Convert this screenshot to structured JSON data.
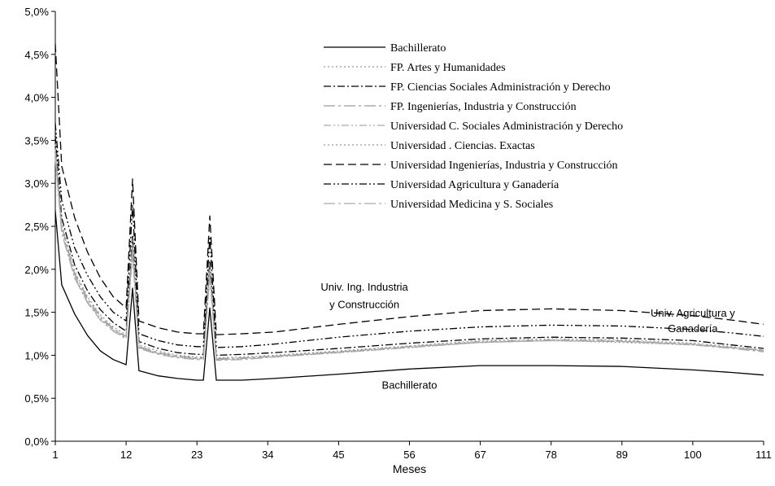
{
  "chart_data": {
    "type": "line",
    "xlabel": "Meses",
    "ylabel": "",
    "xlim": [
      1,
      111
    ],
    "ylim": [
      0,
      5
    ],
    "x_ticks": [
      1,
      12,
      23,
      34,
      45,
      56,
      67,
      78,
      89,
      100,
      111
    ],
    "x_tick_labels": [
      "1",
      "12",
      "23",
      "34",
      "45",
      "56",
      "67",
      "78",
      "89",
      "100",
      "111"
    ],
    "y_ticks": [
      0,
      0.5,
      1.0,
      1.5,
      2.0,
      2.5,
      3.0,
      3.5,
      4.0,
      4.5,
      5.0
    ],
    "y_tick_labels": [
      "0,0%",
      "0,5%",
      "1,0%",
      "1,5%",
      "2,0%",
      "2,5%",
      "3,0%",
      "3,5%",
      "4,0%",
      "4,5%",
      "5,0%"
    ],
    "grid": false,
    "legend_position": "top-right",
    "spike_months": [
      13,
      25
    ],
    "annotations": [
      {
        "text": "Univ. Ing. Industria",
        "x": 49,
        "y": 1.75
      },
      {
        "text": "y Construcción",
        "x": 49,
        "y": 1.55
      },
      {
        "text": "Univ. Agricultura y",
        "x": 100,
        "y": 1.45
      },
      {
        "text": "Ganadería",
        "x": 100,
        "y": 1.27
      },
      {
        "text": "Bachillerato",
        "x": 56,
        "y": 0.61
      }
    ],
    "series": [
      {
        "name": "Bachillerato",
        "color": "#000000",
        "dash": "solid",
        "baseline": [
          [
            1,
            2.68
          ],
          [
            2,
            1.82
          ],
          [
            4,
            1.48
          ],
          [
            6,
            1.23
          ],
          [
            8,
            1.05
          ],
          [
            10,
            0.95
          ],
          [
            12,
            0.89
          ],
          [
            14,
            0.82
          ],
          [
            17,
            0.76
          ],
          [
            20,
            0.73
          ],
          [
            23,
            0.71
          ],
          [
            24,
            0.71
          ],
          [
            26,
            0.71
          ],
          [
            30,
            0.71
          ],
          [
            35,
            0.73
          ],
          [
            45,
            0.78
          ],
          [
            56,
            0.84
          ],
          [
            67,
            0.88
          ],
          [
            78,
            0.88
          ],
          [
            89,
            0.87
          ],
          [
            100,
            0.83
          ],
          [
            106,
            0.8
          ],
          [
            111,
            0.77
          ]
        ],
        "spikes": [
          1.78,
          1.55
        ]
      },
      {
        "name": "FP. Artes y Humanidades",
        "color": "#999999",
        "dash": "dot",
        "baseline": [
          [
            1,
            3.3
          ],
          [
            2,
            2.45
          ],
          [
            4,
            1.9
          ],
          [
            6,
            1.62
          ],
          [
            8,
            1.42
          ],
          [
            10,
            1.29
          ],
          [
            12,
            1.2
          ],
          [
            14,
            1.09
          ],
          [
            17,
            1.02
          ],
          [
            20,
            0.98
          ],
          [
            23,
            0.96
          ],
          [
            24,
            0.96
          ],
          [
            26,
            0.95
          ],
          [
            30,
            0.96
          ],
          [
            35,
            0.98
          ],
          [
            45,
            1.03
          ],
          [
            56,
            1.09
          ],
          [
            67,
            1.15
          ],
          [
            78,
            1.17
          ],
          [
            89,
            1.15
          ],
          [
            100,
            1.12
          ],
          [
            106,
            1.09
          ],
          [
            111,
            1.05
          ]
        ],
        "spikes": [
          2.2,
          1.95
        ]
      },
      {
        "name": "FP. Ciencias Sociales Administración  y Derecho",
        "color": "#000000",
        "dash": "dashdot",
        "baseline": [
          [
            1,
            3.55
          ],
          [
            2,
            2.6
          ],
          [
            4,
            2.05
          ],
          [
            6,
            1.75
          ],
          [
            8,
            1.53
          ],
          [
            10,
            1.38
          ],
          [
            12,
            1.28
          ],
          [
            14,
            1.16
          ],
          [
            17,
            1.08
          ],
          [
            20,
            1.03
          ],
          [
            23,
            1.01
          ],
          [
            24,
            1.01
          ],
          [
            26,
            1.0
          ],
          [
            30,
            1.01
          ],
          [
            35,
            1.03
          ],
          [
            45,
            1.08
          ],
          [
            56,
            1.14
          ],
          [
            67,
            1.19
          ],
          [
            78,
            1.21
          ],
          [
            89,
            1.2
          ],
          [
            100,
            1.17
          ],
          [
            106,
            1.12
          ],
          [
            111,
            1.08
          ]
        ],
        "spikes": [
          2.4,
          2.1
        ]
      },
      {
        "name": "FP. Ingenierías, Industria y Construcción",
        "color": "#999999",
        "dash": "longdash-dot",
        "baseline": [
          [
            1,
            3.4
          ],
          [
            2,
            2.5
          ],
          [
            4,
            1.95
          ],
          [
            6,
            1.66
          ],
          [
            8,
            1.45
          ],
          [
            10,
            1.31
          ],
          [
            12,
            1.22
          ],
          [
            14,
            1.1
          ],
          [
            17,
            1.03
          ],
          [
            20,
            0.99
          ],
          [
            23,
            0.97
          ],
          [
            24,
            0.97
          ],
          [
            26,
            0.96
          ],
          [
            30,
            0.97
          ],
          [
            35,
            0.99
          ],
          [
            45,
            1.04
          ],
          [
            56,
            1.1
          ],
          [
            67,
            1.15
          ],
          [
            78,
            1.17
          ],
          [
            89,
            1.16
          ],
          [
            100,
            1.13
          ],
          [
            106,
            1.09
          ],
          [
            111,
            1.06
          ]
        ],
        "spikes": [
          2.3,
          2.0
        ]
      },
      {
        "name": "Universidad C. Sociales Administración y Derecho",
        "color": "#aaaaaa",
        "dash": "dashdotdot",
        "baseline": [
          [
            1,
            3.35
          ],
          [
            2,
            2.45
          ],
          [
            4,
            1.92
          ],
          [
            6,
            1.63
          ],
          [
            8,
            1.43
          ],
          [
            10,
            1.3
          ],
          [
            12,
            1.21
          ],
          [
            14,
            1.09
          ],
          [
            17,
            1.02
          ],
          [
            20,
            0.98
          ],
          [
            23,
            0.96
          ],
          [
            24,
            0.96
          ],
          [
            26,
            0.95
          ],
          [
            30,
            0.96
          ],
          [
            35,
            0.99
          ],
          [
            45,
            1.04
          ],
          [
            56,
            1.1
          ],
          [
            67,
            1.16
          ],
          [
            78,
            1.18
          ],
          [
            89,
            1.17
          ],
          [
            100,
            1.13
          ],
          [
            106,
            1.09
          ],
          [
            111,
            1.05
          ]
        ],
        "spikes": [
          2.25,
          1.98
        ]
      },
      {
        "name": "Universidad . Ciencias. Exactas",
        "color": "#999999",
        "dash": "dot",
        "baseline": [
          [
            1,
            3.45
          ],
          [
            2,
            2.55
          ],
          [
            4,
            1.98
          ],
          [
            6,
            1.68
          ],
          [
            8,
            1.47
          ],
          [
            10,
            1.33
          ],
          [
            12,
            1.24
          ],
          [
            14,
            1.12
          ],
          [
            17,
            1.05
          ],
          [
            20,
            1.0
          ],
          [
            23,
            0.98
          ],
          [
            24,
            0.98
          ],
          [
            26,
            0.97
          ],
          [
            30,
            0.98
          ],
          [
            35,
            1.0
          ],
          [
            45,
            1.05
          ],
          [
            56,
            1.11
          ],
          [
            67,
            1.17
          ],
          [
            78,
            1.19
          ],
          [
            89,
            1.18
          ],
          [
            100,
            1.14
          ],
          [
            106,
            1.1
          ],
          [
            111,
            1.06
          ]
        ],
        "spikes": [
          2.35,
          2.05
        ]
      },
      {
        "name": "Universidad Ingenierías, Industria y Construcción",
        "color": "#000000",
        "dash": "dash",
        "baseline": [
          [
            1,
            4.62
          ],
          [
            2,
            3.2
          ],
          [
            4,
            2.6
          ],
          [
            6,
            2.2
          ],
          [
            8,
            1.9
          ],
          [
            10,
            1.68
          ],
          [
            12,
            1.55
          ],
          [
            14,
            1.4
          ],
          [
            17,
            1.32
          ],
          [
            20,
            1.27
          ],
          [
            23,
            1.25
          ],
          [
            24,
            1.25
          ],
          [
            26,
            1.24
          ],
          [
            30,
            1.25
          ],
          [
            35,
            1.27
          ],
          [
            45,
            1.36
          ],
          [
            56,
            1.45
          ],
          [
            67,
            1.52
          ],
          [
            78,
            1.54
          ],
          [
            89,
            1.52
          ],
          [
            100,
            1.46
          ],
          [
            106,
            1.41
          ],
          [
            111,
            1.36
          ]
        ],
        "spikes": [
          3.05,
          2.62
        ]
      },
      {
        "name": "Universidad Agricultura y Ganadería",
        "color": "#000000",
        "dash": "dashdotdot",
        "baseline": [
          [
            1,
            3.7
          ],
          [
            2,
            2.8
          ],
          [
            4,
            2.25
          ],
          [
            6,
            1.93
          ],
          [
            8,
            1.68
          ],
          [
            10,
            1.5
          ],
          [
            12,
            1.4
          ],
          [
            14,
            1.25
          ],
          [
            17,
            1.17
          ],
          [
            20,
            1.12
          ],
          [
            23,
            1.1
          ],
          [
            24,
            1.1
          ],
          [
            26,
            1.09
          ],
          [
            30,
            1.1
          ],
          [
            35,
            1.13
          ],
          [
            45,
            1.21
          ],
          [
            56,
            1.28
          ],
          [
            67,
            1.33
          ],
          [
            78,
            1.35
          ],
          [
            89,
            1.34
          ],
          [
            100,
            1.3
          ],
          [
            106,
            1.26
          ],
          [
            111,
            1.22
          ]
        ],
        "spikes": [
          2.75,
          2.38
        ]
      },
      {
        "name": "Universidad Medicina y  S. Sociales",
        "color": "#aaaaaa",
        "dash": "longdash-dot",
        "baseline": [
          [
            1,
            3.28
          ],
          [
            2,
            2.42
          ],
          [
            4,
            1.9
          ],
          [
            6,
            1.61
          ],
          [
            8,
            1.41
          ],
          [
            10,
            1.28
          ],
          [
            12,
            1.19
          ],
          [
            14,
            1.08
          ],
          [
            17,
            1.01
          ],
          [
            20,
            0.97
          ],
          [
            23,
            0.95
          ],
          [
            24,
            0.95
          ],
          [
            26,
            0.94
          ],
          [
            30,
            0.95
          ],
          [
            35,
            0.98
          ],
          [
            45,
            1.03
          ],
          [
            56,
            1.09
          ],
          [
            67,
            1.15
          ],
          [
            78,
            1.17
          ],
          [
            89,
            1.16
          ],
          [
            100,
            1.12
          ],
          [
            106,
            1.08
          ],
          [
            111,
            1.04
          ]
        ],
        "spikes": [
          2.18,
          1.92
        ]
      }
    ]
  }
}
